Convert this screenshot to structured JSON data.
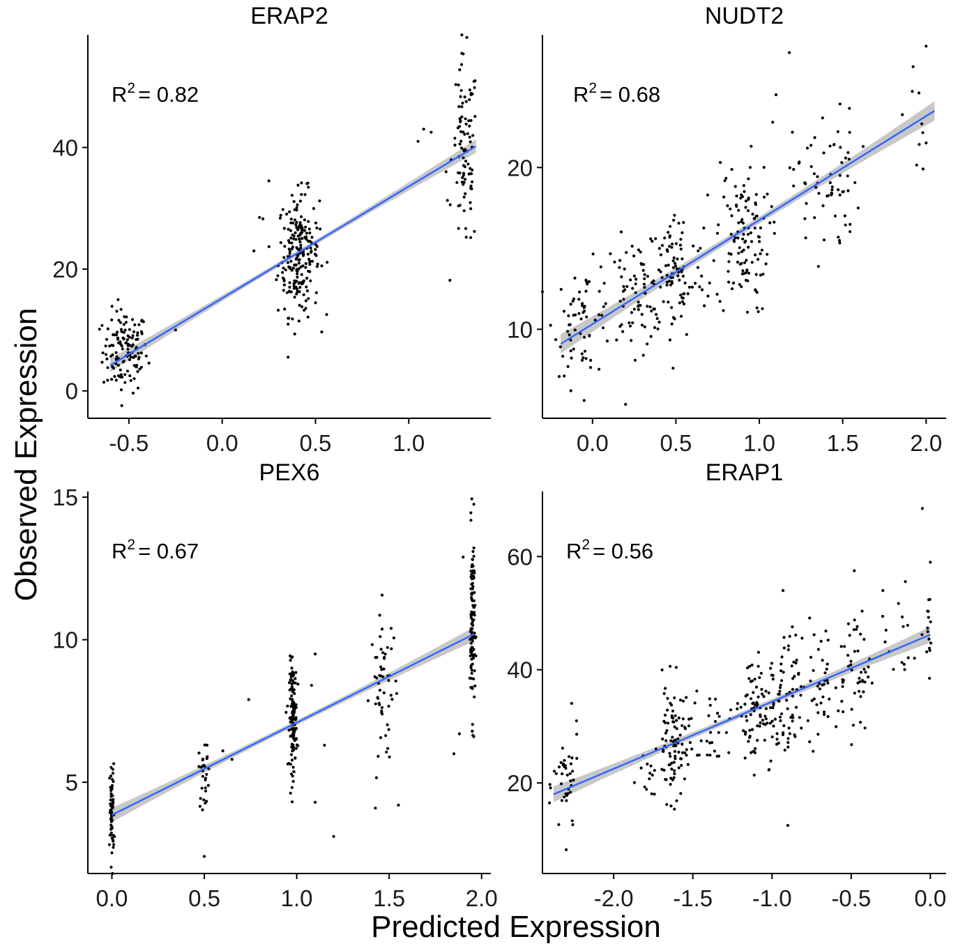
{
  "figure": {
    "xlabel": "Predicted Expression",
    "ylabel": "Observed Expression"
  },
  "colors": {
    "fit_line": "#3366ff",
    "ci_band": "#bebebe",
    "points": "#000000"
  },
  "chart_data": [
    {
      "type": "scatter",
      "title": "ERAP2",
      "r2_text": "R",
      "r2_sup": "2",
      "r2_value": "= 0.82",
      "xlim": [
        -0.72,
        1.44
      ],
      "ylim": [
        -4.5,
        58.5
      ],
      "xticks": [
        -0.5,
        0.0,
        0.5,
        1.0
      ],
      "xtick_labels": [
        "-0.5",
        "0.0",
        "0.5",
        "1.0"
      ],
      "yticks": [
        0,
        20,
        40
      ],
      "ytick_labels": [
        "0",
        "20",
        "40"
      ],
      "fit": {
        "x0": -0.6,
        "y0": 4.2,
        "x1": 1.36,
        "y1": 40.2,
        "ci": 1.1
      },
      "clusters": [
        {
          "x": -0.52,
          "xsd": 0.06,
          "y": 6.5,
          "ysd": 3.4,
          "n": 130
        },
        {
          "x": 0.41,
          "xsd": 0.055,
          "y": 22.5,
          "ysd": 5.0,
          "n": 220
        },
        {
          "x": 1.3,
          "xsd": 0.035,
          "y": 38.5,
          "ysd": 8.0,
          "n": 95
        }
      ],
      "extra_points": [
        [
          0.2,
          28.5
        ],
        [
          0.17,
          23.0
        ],
        [
          0.25,
          34.5
        ],
        [
          -0.25,
          10.0
        ],
        [
          1.08,
          43.0
        ],
        [
          1.12,
          42.5
        ],
        [
          1.05,
          41.0
        ],
        [
          1.2,
          36.0
        ]
      ]
    },
    {
      "type": "scatter",
      "title": "NUDT2",
      "r2_text": "R",
      "r2_sup": "2",
      "r2_value": "= 0.68",
      "xlim": [
        -0.3,
        2.12
      ],
      "ylim": [
        4.5,
        28.2
      ],
      "xticks": [
        0.0,
        0.5,
        1.0,
        1.5,
        2.0
      ],
      "xtick_labels": [
        "0.0",
        "0.5",
        "1.0",
        "1.5",
        "2.0"
      ],
      "yticks": [
        10,
        20
      ],
      "ytick_labels": [
        "10",
        "20"
      ],
      "fit": {
        "x0": -0.19,
        "y0": 9.1,
        "x1": 2.05,
        "y1": 23.5,
        "ci": 0.6
      },
      "clusters": [
        {
          "x": -0.05,
          "xsd": 0.09,
          "y": 10.6,
          "ysd": 1.7,
          "n": 65
        },
        {
          "x": 0.25,
          "xsd": 0.09,
          "y": 12.2,
          "ysd": 1.7,
          "n": 70
        },
        {
          "x": 0.5,
          "xsd": 0.09,
          "y": 13.3,
          "ysd": 2.0,
          "n": 95
        },
        {
          "x": 0.9,
          "xsd": 0.08,
          "y": 15.7,
          "ysd": 2.4,
          "n": 120
        },
        {
          "x": 1.4,
          "xsd": 0.1,
          "y": 19.0,
          "ysd": 2.3,
          "n": 65
        },
        {
          "x": 1.97,
          "xsd": 0.05,
          "y": 23.0,
          "ysd": 2.0,
          "n": 10
        }
      ],
      "extra_points": [
        [
          1.18,
          27.1
        ],
        [
          2.0,
          27.5
        ],
        [
          1.1,
          24.5
        ],
        [
          1.08,
          22.8
        ],
        [
          -0.05,
          5.6
        ],
        [
          -0.13,
          6.2
        ]
      ]
    },
    {
      "type": "scatter",
      "title": "PEX6",
      "r2_text": "R",
      "r2_sup": "2",
      "r2_value": "= 0.67",
      "xlim": [
        -0.13,
        2.05
      ],
      "ylim": [
        1.8,
        15.2
      ],
      "xticks": [
        0.0,
        0.5,
        1.0,
        1.5,
        2.0
      ],
      "xtick_labels": [
        "0.0",
        "0.5",
        "1.0",
        "1.5",
        "2.0"
      ],
      "yticks": [
        5,
        10,
        15
      ],
      "ytick_labels": [
        "5",
        "10",
        "15"
      ],
      "fit": {
        "x0": 0.0,
        "y0": 3.85,
        "x1": 1.96,
        "y1": 10.2,
        "ci": 0.25
      },
      "clusters": [
        {
          "x": 0.0,
          "xsd": 0.006,
          "y": 3.9,
          "ysd": 0.85,
          "n": 70
        },
        {
          "x": 0.5,
          "xsd": 0.015,
          "y": 5.3,
          "ysd": 0.6,
          "n": 28
        },
        {
          "x": 0.98,
          "xsd": 0.01,
          "y": 7.3,
          "ysd": 0.95,
          "n": 140
        },
        {
          "x": 1.47,
          "xsd": 0.035,
          "y": 8.2,
          "ysd": 1.4,
          "n": 55
        },
        {
          "x": 1.95,
          "xsd": 0.007,
          "y": 10.6,
          "ysd": 1.6,
          "n": 110
        }
      ],
      "extra_points": [
        [
          0.74,
          7.9
        ],
        [
          0.6,
          6.1
        ],
        [
          0.65,
          5.8
        ],
        [
          1.1,
          9.5
        ],
        [
          1.08,
          8.4
        ],
        [
          1.1,
          4.3
        ],
        [
          1.2,
          3.1
        ],
        [
          1.15,
          6.3
        ],
        [
          1.85,
          6.0
        ],
        [
          1.88,
          6.7
        ],
        [
          1.9,
          12.9
        ],
        [
          1.55,
          4.2
        ],
        [
          0.5,
          2.4
        ]
      ]
    },
    {
      "type": "scatter",
      "title": "ERAP1",
      "r2_text": "R",
      "r2_sup": "2",
      "r2_value": "= 0.56",
      "xlim": [
        -2.45,
        0.1
      ],
      "ylim": [
        4.0,
        71.5
      ],
      "xticks": [
        -2.0,
        -1.5,
        -1.0,
        -0.5,
        0.0
      ],
      "xtick_labels": [
        "-2.0",
        "-1.5",
        "-1.0",
        "-0.5",
        "0.0"
      ],
      "yticks": [
        20,
        40,
        60
      ],
      "ytick_labels": [
        "20",
        "40",
        "60"
      ],
      "fit": {
        "x0": -2.38,
        "y0": 18.0,
        "x1": 0.0,
        "y1": 46.2,
        "ci": 1.4
      },
      "clusters": [
        {
          "x": -2.3,
          "xsd": 0.04,
          "y": 19.5,
          "ysd": 5.0,
          "n": 40
        },
        {
          "x": -1.62,
          "xsd": 0.05,
          "y": 27.0,
          "ysd": 5.2,
          "n": 95
        },
        {
          "x": -1.38,
          "xsd": 0.06,
          "y": 30.0,
          "ysd": 3.5,
          "n": 25
        },
        {
          "x": -1.12,
          "xsd": 0.06,
          "y": 33.0,
          "ysd": 5.0,
          "n": 75
        },
        {
          "x": -0.93,
          "xsd": 0.06,
          "y": 33.5,
          "ysd": 6.0,
          "n": 75
        },
        {
          "x": -0.7,
          "xsd": 0.07,
          "y": 37.5,
          "ysd": 5.5,
          "n": 40
        },
        {
          "x": -0.48,
          "xsd": 0.05,
          "y": 40.0,
          "ysd": 5.5,
          "n": 45
        },
        {
          "x": -0.2,
          "xsd": 0.1,
          "y": 45.0,
          "ysd": 5.0,
          "n": 20
        },
        {
          "x": 0.0,
          "xsd": 0.01,
          "y": 48.0,
          "ysd": 4.0,
          "n": 12
        },
        {
          "x": -1.82,
          "xsd": 0.06,
          "y": 21.0,
          "ysd": 3.0,
          "n": 12
        }
      ],
      "extra_points": [
        [
          -0.05,
          68.5
        ],
        [
          -0.48,
          57.5
        ],
        [
          -0.93,
          54.0
        ],
        [
          -0.9,
          12.5
        ],
        [
          -2.3,
          8.2
        ],
        [
          -0.3,
          54.0
        ],
        [
          0.0,
          59.0
        ]
      ]
    }
  ]
}
